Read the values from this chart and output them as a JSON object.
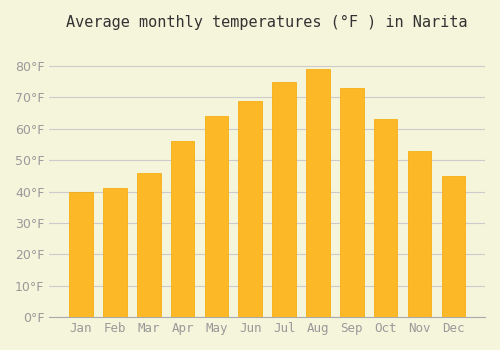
{
  "title": "Average monthly temperatures (°F ) in Narita",
  "months": [
    "Jan",
    "Feb",
    "Mar",
    "Apr",
    "May",
    "Jun",
    "Jul",
    "Aug",
    "Sep",
    "Oct",
    "Nov",
    "Dec"
  ],
  "values": [
    40,
    41,
    46,
    56,
    64,
    69,
    75,
    79,
    73,
    63,
    53,
    45
  ],
  "bar_color_face": "#FDB827",
  "bar_color_edge": "#F5A800",
  "background_color": "#F5F5DC",
  "grid_color": "#CCCCCC",
  "ylim": [
    0,
    88
  ],
  "yticks": [
    0,
    10,
    20,
    30,
    40,
    50,
    60,
    70,
    80
  ],
  "title_fontsize": 11,
  "tick_fontsize": 9,
  "tick_label_color": "#999999",
  "bar_width": 0.7
}
